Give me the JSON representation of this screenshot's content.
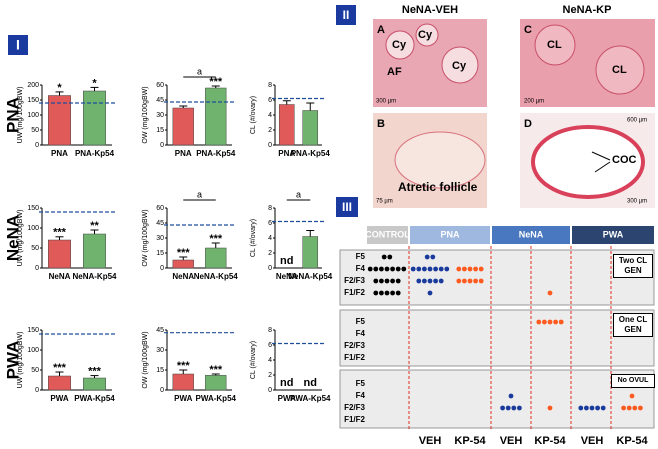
{
  "panel_1": {
    "label": "I",
    "row_labels": [
      "PNA",
      "NeNA",
      "PWA"
    ]
  },
  "chart_data": [
    {
      "type": "bar",
      "y_label": "UW (mg/100gBW)",
      "categories": [
        "PNA",
        "PNA-Kp54"
      ],
      "values": [
        165,
        180
      ],
      "errors": [
        12,
        12
      ],
      "significance": [
        "*",
        "*"
      ],
      "ref": 140,
      "ylim": [
        0,
        200
      ],
      "yticks": [
        0,
        50,
        100,
        150,
        200
      ],
      "colors": [
        "#e05a5a",
        "#6fb36f"
      ]
    },
    {
      "type": "bar",
      "y_label": "OW (mg/100gBW)",
      "categories": [
        "PNA",
        "PNA-Kp54"
      ],
      "values": [
        37,
        57
      ],
      "errors": [
        2,
        2
      ],
      "significance": [
        "",
        "***"
      ],
      "bracket_label": "a",
      "ref": 43,
      "ylim": [
        0,
        60
      ],
      "yticks": [
        0,
        15,
        30,
        45,
        60
      ],
      "colors": [
        "#e05a5a",
        "#6fb36f"
      ]
    },
    {
      "type": "bar",
      "y_label": "CL (#/ovary)",
      "categories": [
        "PNA",
        "PNA-Kp54"
      ],
      "values": [
        5.4,
        4.6
      ],
      "errors": [
        0.5,
        1
      ],
      "significance": [
        "",
        ""
      ],
      "ref": 6.2,
      "ylim": [
        0,
        8
      ],
      "yticks": [
        0,
        2,
        4,
        6,
        8
      ],
      "colors": [
        "#e05a5a",
        "#6fb36f"
      ]
    },
    {
      "type": "bar",
      "y_label": "UW (mg/100gBW)",
      "categories": [
        "NeNA",
        "NeNA-Kp54"
      ],
      "values": [
        70,
        85
      ],
      "errors": [
        8,
        10
      ],
      "significance": [
        "***",
        "**"
      ],
      "ref": 140,
      "ylim": [
        0,
        150
      ],
      "yticks": [
        0,
        50,
        100,
        150
      ],
      "colors": [
        "#e05a5a",
        "#6fb36f"
      ]
    },
    {
      "type": "bar",
      "y_label": "OW (mg/100gBW)",
      "categories": [
        "NeNA",
        "NeNA-Kp54"
      ],
      "values": [
        8,
        20
      ],
      "errors": [
        3,
        5
      ],
      "significance": [
        "***",
        "***"
      ],
      "bracket_label": "a",
      "ref": 43,
      "ylim": [
        0,
        60
      ],
      "yticks": [
        0,
        15,
        30,
        45,
        60
      ],
      "colors": [
        "#e05a5a",
        "#6fb36f"
      ]
    },
    {
      "type": "bar",
      "y_label": "CL (#/ovary)",
      "categories": [
        "NeNA",
        "NeNA-Kp54"
      ],
      "values": [
        null,
        4.2
      ],
      "errors": [
        null,
        0.8
      ],
      "significance": [
        "nd",
        ""
      ],
      "bracket_label": "a",
      "ref": 6.2,
      "ylim": [
        0,
        8
      ],
      "yticks": [
        0,
        2,
        4,
        6,
        8
      ],
      "colors": [
        "#e05a5a",
        "#6fb36f"
      ]
    },
    {
      "type": "bar",
      "y_label": "UW (mg/100gBW)",
      "categories": [
        "PWA",
        "PWA-Kp54"
      ],
      "values": [
        35,
        30
      ],
      "errors": [
        10,
        6
      ],
      "significance": [
        "***",
        "***"
      ],
      "ref": 140,
      "ylim": [
        0,
        150
      ],
      "yticks": [
        0,
        50,
        100,
        150
      ],
      "colors": [
        "#e05a5a",
        "#6fb36f"
      ]
    },
    {
      "type": "bar",
      "y_label": "OW (mg/100gBW)",
      "categories": [
        "PWA",
        "PWA-Kp54"
      ],
      "values": [
        12,
        11
      ],
      "errors": [
        3,
        1
      ],
      "significance": [
        "***",
        "***"
      ],
      "ref": 43,
      "ylim": [
        0,
        45
      ],
      "yticks": [
        0,
        15,
        30,
        45
      ],
      "colors": [
        "#e05a5a",
        "#6fb36f"
      ]
    },
    {
      "type": "bar",
      "y_label": "CL (#/ovary)",
      "categories": [
        "PWA",
        "PWA-Kp54"
      ],
      "values": [
        null,
        null
      ],
      "errors": [
        null,
        null
      ],
      "significance": [
        "nd",
        "nd"
      ],
      "ref": 6.2,
      "ylim": [
        0,
        8
      ],
      "yticks": [
        0,
        2,
        4,
        6,
        8
      ],
      "colors": [
        "#e05a5a",
        "#6fb36f"
      ]
    }
  ],
  "panel_2": {
    "label": "II",
    "headers": [
      "NeNA-VEH",
      "NeNA-KP"
    ],
    "images": [
      {
        "letter": "A",
        "labels": [
          "Cy",
          "Cy",
          "AF",
          "Cy"
        ],
        "scales": [
          "300 µm"
        ]
      },
      {
        "letter": "C",
        "labels": [
          "CL",
          "CL"
        ],
        "scales": [
          "200 µm"
        ]
      },
      {
        "letter": "B",
        "labels": [
          "Atretic follicle"
        ],
        "scales": [
          "75 µm"
        ]
      },
      {
        "letter": "D",
        "labels": [
          "COC"
        ],
        "scales": [
          "600 µm",
          "300 µm"
        ]
      }
    ]
  },
  "dot_table": {
    "label": "III",
    "headers": [
      "CONTROL",
      "PNA",
      "NeNA",
      "PWA"
    ],
    "header_colors": [
      "#c8c8c8",
      "#9fb8e0",
      "#4a78c0",
      "#2b4470"
    ],
    "columns": [
      "VEH",
      "KP-54",
      "VEH",
      "KP-54",
      "VEH",
      "KP-54"
    ],
    "rows": [
      "F5",
      "F4",
      "F2/F3",
      "F1/F2"
    ],
    "dot_colors": [
      "#000000",
      "#1a3a9c",
      "#ff5a1f",
      "#1a3a9c",
      "#ff5a1f",
      "#1a3a9c",
      "#ff5a1f"
    ],
    "groups": [
      {
        "label": "Two CL GEN",
        "counts": [
          [
            2,
            2,
            0,
            0,
            0,
            0,
            0
          ],
          [
            7,
            7,
            5,
            0,
            0,
            0,
            0
          ],
          [
            5,
            5,
            5,
            0,
            0,
            0,
            0
          ],
          [
            5,
            1,
            0,
            0,
            1,
            0,
            0
          ]
        ]
      },
      {
        "label": "One CL GEN",
        "counts": [
          [
            0,
            0,
            0,
            0,
            5,
            0,
            0
          ],
          [
            0,
            0,
            0,
            0,
            0,
            0,
            0
          ],
          [
            0,
            0,
            0,
            0,
            0,
            0,
            0
          ],
          [
            0,
            0,
            0,
            0,
            0,
            0,
            0
          ]
        ]
      },
      {
        "label": "No OVUL",
        "counts": [
          [
            0,
            0,
            0,
            0,
            0,
            0,
            0
          ],
          [
            0,
            0,
            0,
            1,
            0,
            0,
            1
          ],
          [
            0,
            0,
            0,
            4,
            1,
            5,
            4
          ],
          [
            0,
            0,
            0,
            0,
            0,
            0,
            0
          ]
        ]
      }
    ]
  }
}
